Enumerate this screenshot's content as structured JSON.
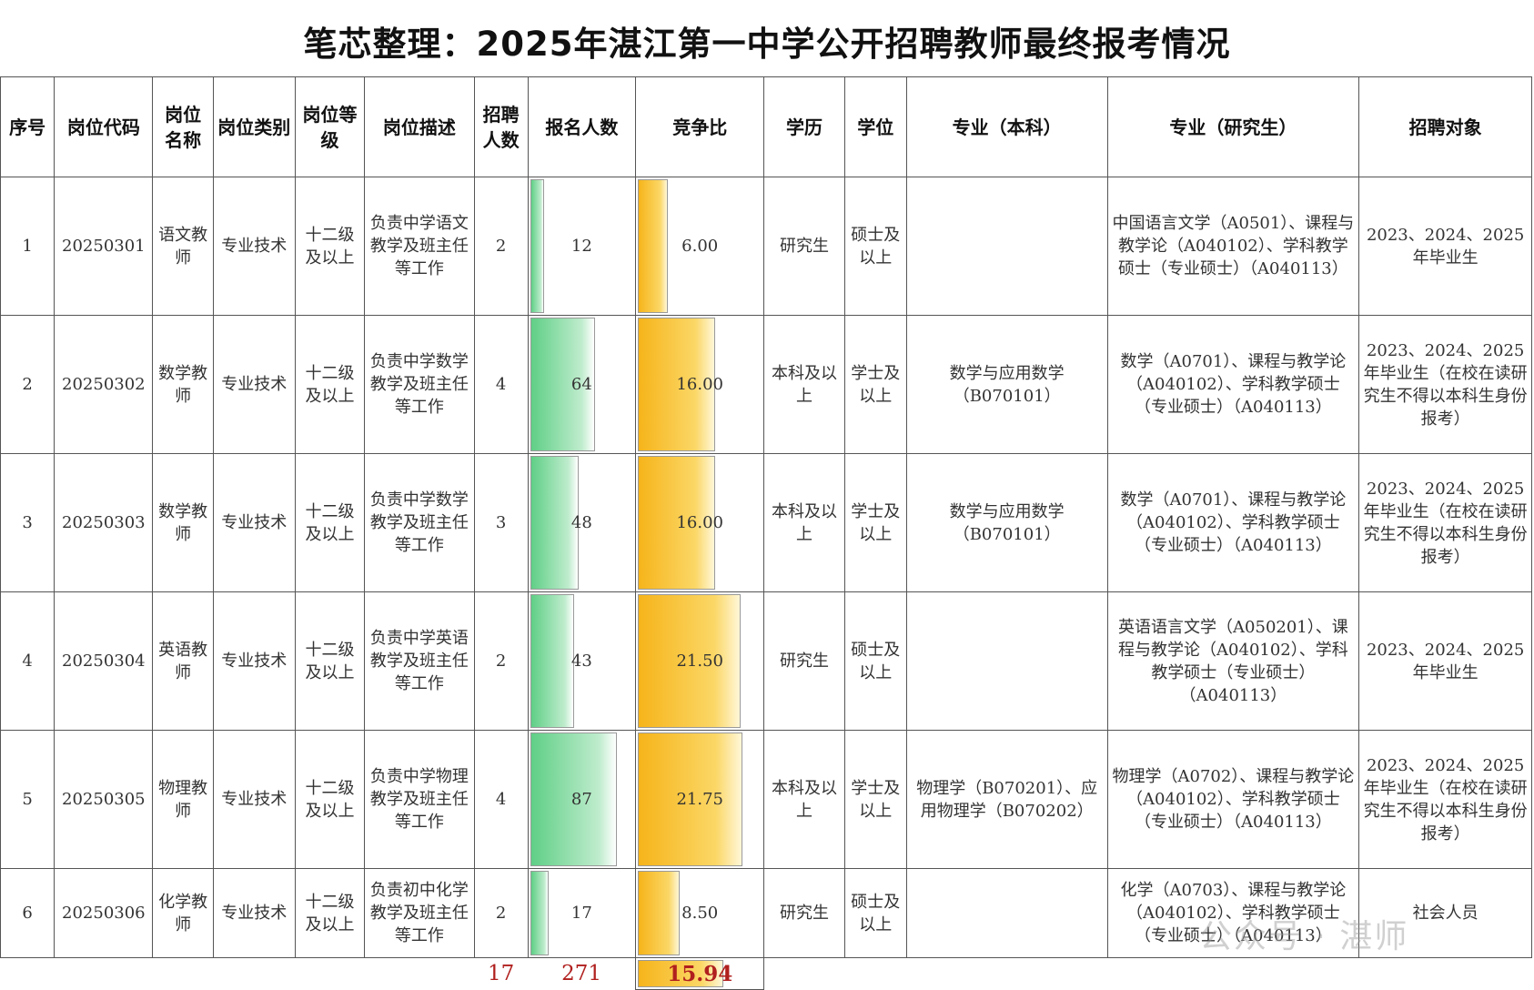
{
  "title": "笔芯整理：2025年湛江第一中学公开招聘教师最终报考情况",
  "headers": {
    "seq": "序号",
    "code": "岗位代码",
    "name": "岗位名称",
    "category": "岗位类别",
    "level": "岗位等级",
    "description": "岗位描述",
    "quota": "招聘人数",
    "applicants": "报名人数",
    "ratio": "竞争比",
    "education": "学历",
    "degree": "学位",
    "major_bachelor": "专业（本科）",
    "major_graduate": "专业（研究生）",
    "target": "招聘对象"
  },
  "rows": [
    {
      "seq": "1",
      "code": "20250301",
      "name": "语文教师",
      "category": "专业技术",
      "level": "十二级及以上",
      "description": "负责中学语文教学及班主任等工作",
      "quota": "2",
      "applicants": "12",
      "ratio": "6.00",
      "education": "研究生",
      "degree": "硕士及以上",
      "major_bachelor": "",
      "major_graduate": "中国语言文学（A0501）、课程与教学论（A040102）、学科教学硕士（专业硕士）（A040113）",
      "target": "2023、2024、2025年毕业生"
    },
    {
      "seq": "2",
      "code": "20250302",
      "name": "数学教师",
      "category": "专业技术",
      "level": "十二级及以上",
      "description": "负责中学数学教学及班主任等工作",
      "quota": "4",
      "applicants": "64",
      "ratio": "16.00",
      "education": "本科及以上",
      "degree": "学士及以上",
      "major_bachelor": "数学与应用数学（B070101）",
      "major_graduate": "数学（A0701）、课程与教学论（A040102）、学科教学硕士（专业硕士）（A040113）",
      "target": "2023、2024、2025年毕业生（在校在读研究生不得以本科生身份报考）"
    },
    {
      "seq": "3",
      "code": "20250303",
      "name": "数学教师",
      "category": "专业技术",
      "level": "十二级及以上",
      "description": "负责中学数学教学及班主任等工作",
      "quota": "3",
      "applicants": "48",
      "ratio": "16.00",
      "education": "本科及以上",
      "degree": "学士及以上",
      "major_bachelor": "数学与应用数学（B070101）",
      "major_graduate": "数学（A0701）、课程与教学论（A040102）、学科教学硕士（专业硕士）（A040113）",
      "target": "2023、2024、2025年毕业生（在校在读研究生不得以本科生身份报考）"
    },
    {
      "seq": "4",
      "code": "20250304",
      "name": "英语教师",
      "category": "专业技术",
      "level": "十二级及以上",
      "description": "负责中学英语教学及班主任等工作",
      "quota": "2",
      "applicants": "43",
      "ratio": "21.50",
      "education": "研究生",
      "degree": "硕士及以上",
      "major_bachelor": "",
      "major_graduate": "英语语言文学（A050201）、课程与教学论（A040102）、学科教学硕士（专业硕士）（A040113）",
      "target": "2023、2024、2025年毕业生"
    },
    {
      "seq": "5",
      "code": "20250305",
      "name": "物理教师",
      "category": "专业技术",
      "level": "十二级及以上",
      "description": "负责中学物理教学及班主任等工作",
      "quota": "4",
      "applicants": "87",
      "ratio": "21.75",
      "education": "本科及以上",
      "degree": "学士及以上",
      "major_bachelor": "物理学（B070201）、应用物理学（B070202）",
      "major_graduate": "物理学（A0702）、课程与教学论（A040102）、学科教学硕士（专业硕士）（A040113）",
      "target": "2023、2024、2025年毕业生（在校在读研究生不得以本科生身份报考）"
    },
    {
      "seq": "6",
      "code": "20250306",
      "name": "化学教师",
      "category": "专业技术",
      "level": "十二级及以上",
      "description": "负责初中化学教学及班主任等工作",
      "quota": "2",
      "applicants": "17",
      "ratio": "8.50",
      "education": "研究生",
      "degree": "硕士及以上",
      "major_bachelor": "",
      "major_graduate": "化学（A0703）、课程与教学论（A040102）、学科教学硕士（专业硕士）（A040113）",
      "target": "社会人员"
    }
  ],
  "totals": {
    "quota": "17",
    "applicants": "271",
    "ratio": "15.94"
  },
  "bar_scale": {
    "applicants_max": 87,
    "ratio_max": 21.75
  },
  "watermark": "公众号 · 湛师",
  "colors": {
    "applicants_bar": "#5fcf86",
    "ratio_bar": "#f6b41a",
    "totals_text": "#b0201e"
  }
}
